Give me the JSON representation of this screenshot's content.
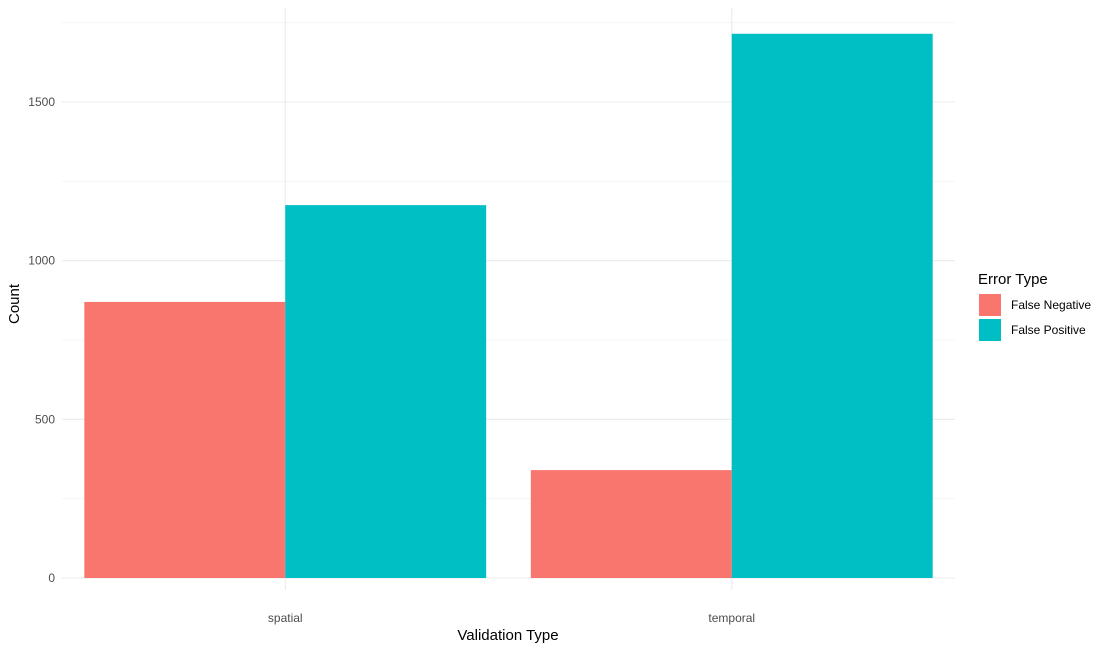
{
  "chart_data": {
    "type": "bar",
    "categories": [
      "spatial",
      "temporal"
    ],
    "series": [
      {
        "name": "False Negative",
        "color": "#F8766D",
        "values": [
          870,
          340
        ]
      },
      {
        "name": "False Positive",
        "color": "#00BFC4",
        "values": [
          1175,
          1715
        ]
      }
    ],
    "xlabel": "Validation Type",
    "ylabel": "Count",
    "ylim": [
      0,
      1800
    ],
    "yticks": [
      0,
      500,
      1000,
      1500
    ],
    "yticklabels": [
      "0",
      "500",
      "1000",
      "1500"
    ],
    "grid": true,
    "legend": {
      "title": "Error Type",
      "position": "right"
    }
  }
}
